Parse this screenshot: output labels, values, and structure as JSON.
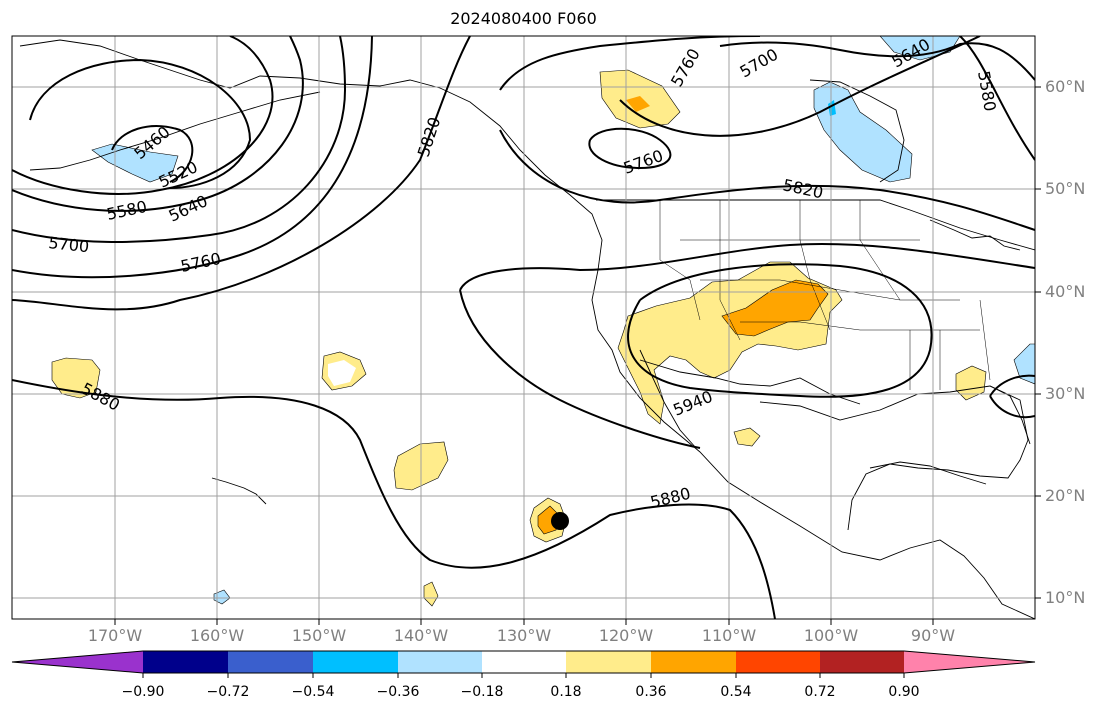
{
  "title": "2024080400 F060",
  "lat_labels": [
    "60°N",
    "50°N",
    "40°N",
    "30°N",
    "20°N",
    "10°N"
  ],
  "lon_labels": [
    "170°W",
    "160°W",
    "150°W",
    "140°W",
    "130°W",
    "120°W",
    "110°W",
    "100°W",
    "90°W"
  ],
  "contour_labels": [
    "5460",
    "5520",
    "5580",
    "5640",
    "5700",
    "5760",
    "5820",
    "5880",
    "5940",
    "5760",
    "5700",
    "5640",
    "5580",
    "5820",
    "5760",
    "5880"
  ],
  "colorbar": {
    "tick_labels": [
      "−0.90",
      "−0.72",
      "−0.54",
      "−0.36",
      "−0.18",
      "0.18",
      "0.36",
      "0.54",
      "0.72",
      "0.90"
    ],
    "colors": [
      "#9a32cd",
      "#00008b",
      "#3a5fcd",
      "#00bfff",
      "#b0e2ff",
      "#ffffff",
      "#ffec8b",
      "#ffa500",
      "#ff4500",
      "#b22222",
      "#ff82ab"
    ]
  },
  "shading_colors": {
    "light_positive": "#ffec8b",
    "positive": "#ffa500",
    "light_negative": "#b0e2ff",
    "negative": "#00bfff"
  }
}
